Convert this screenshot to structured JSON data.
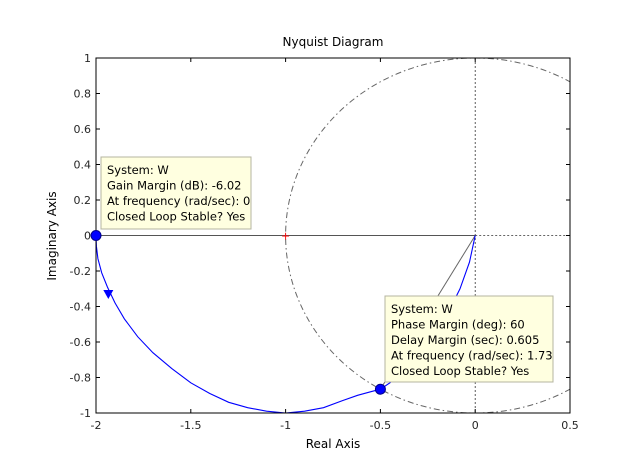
{
  "chart_data": {
    "type": "line",
    "title": "Nyquist Diagram",
    "xlabel": "Real Axis",
    "ylabel": "Imaginary Axis",
    "xlim": [
      -2,
      0.5
    ],
    "ylim": [
      -1,
      1
    ],
    "xticks": [
      "-2",
      "-1.5",
      "-1",
      "-0.5",
      "0",
      "0.5"
    ],
    "yticks": [
      "1",
      "0.8",
      "0.6",
      "0.4",
      "0.2",
      "0",
      "-0.2",
      "-0.4",
      "-0.6",
      "-0.8",
      "-1"
    ],
    "unit_circle": {
      "center": [
        0,
        0
      ],
      "radius": 1,
      "style": "dash-dot"
    },
    "critical_point": [
      -1,
      0
    ],
    "series": [
      {
        "color": "#0000ff",
        "x": [
          -2.0,
          -1.998,
          -1.99,
          -1.97,
          -1.94,
          -1.9,
          -1.85,
          -1.78,
          -1.7,
          -1.6,
          -1.5,
          -1.4,
          -1.3,
          -1.2,
          -1.1,
          -1.0,
          -0.9,
          -0.8,
          -0.7,
          -0.62,
          -0.55,
          -0.5,
          -0.45,
          -0.35,
          -0.25,
          -0.15,
          -0.08,
          -0.03,
          -0.01,
          0.0
        ],
        "y": [
          0.0,
          -0.06,
          -0.13,
          -0.21,
          -0.29,
          -0.38,
          -0.47,
          -0.57,
          -0.66,
          -0.75,
          -0.83,
          -0.89,
          -0.94,
          -0.97,
          -0.99,
          -1.0,
          -0.99,
          -0.97,
          -0.93,
          -0.9,
          -0.88,
          -0.866,
          -0.83,
          -0.74,
          -0.6,
          -0.45,
          -0.3,
          -0.15,
          -0.05,
          0.0
        ]
      }
    ],
    "arrow": {
      "x": -1.935,
      "y": -0.335
    },
    "markers": [
      {
        "name": "gain-margin-point",
        "x": -2.0,
        "y": 0.0
      },
      {
        "name": "phase-margin-point",
        "x": -0.5,
        "y": -0.866
      }
    ],
    "datatips": [
      {
        "name": "gain-margin-tip",
        "anchor": [
          -2.0,
          0.0
        ],
        "lines": [
          "System: W",
          "Gain Margin (dB): -6.02",
          "At frequency (rad/sec): 0",
          "Closed Loop Stable? Yes"
        ]
      },
      {
        "name": "phase-margin-tip",
        "anchor": [
          -0.5,
          -0.866
        ],
        "lines": [
          "System: W",
          "Phase Margin (deg): 60",
          "Delay Margin (sec): 0.605",
          "At frequency (rad/sec): 1.73",
          "Closed Loop Stable? Yes"
        ]
      }
    ],
    "grid": false,
    "legend": "none"
  }
}
